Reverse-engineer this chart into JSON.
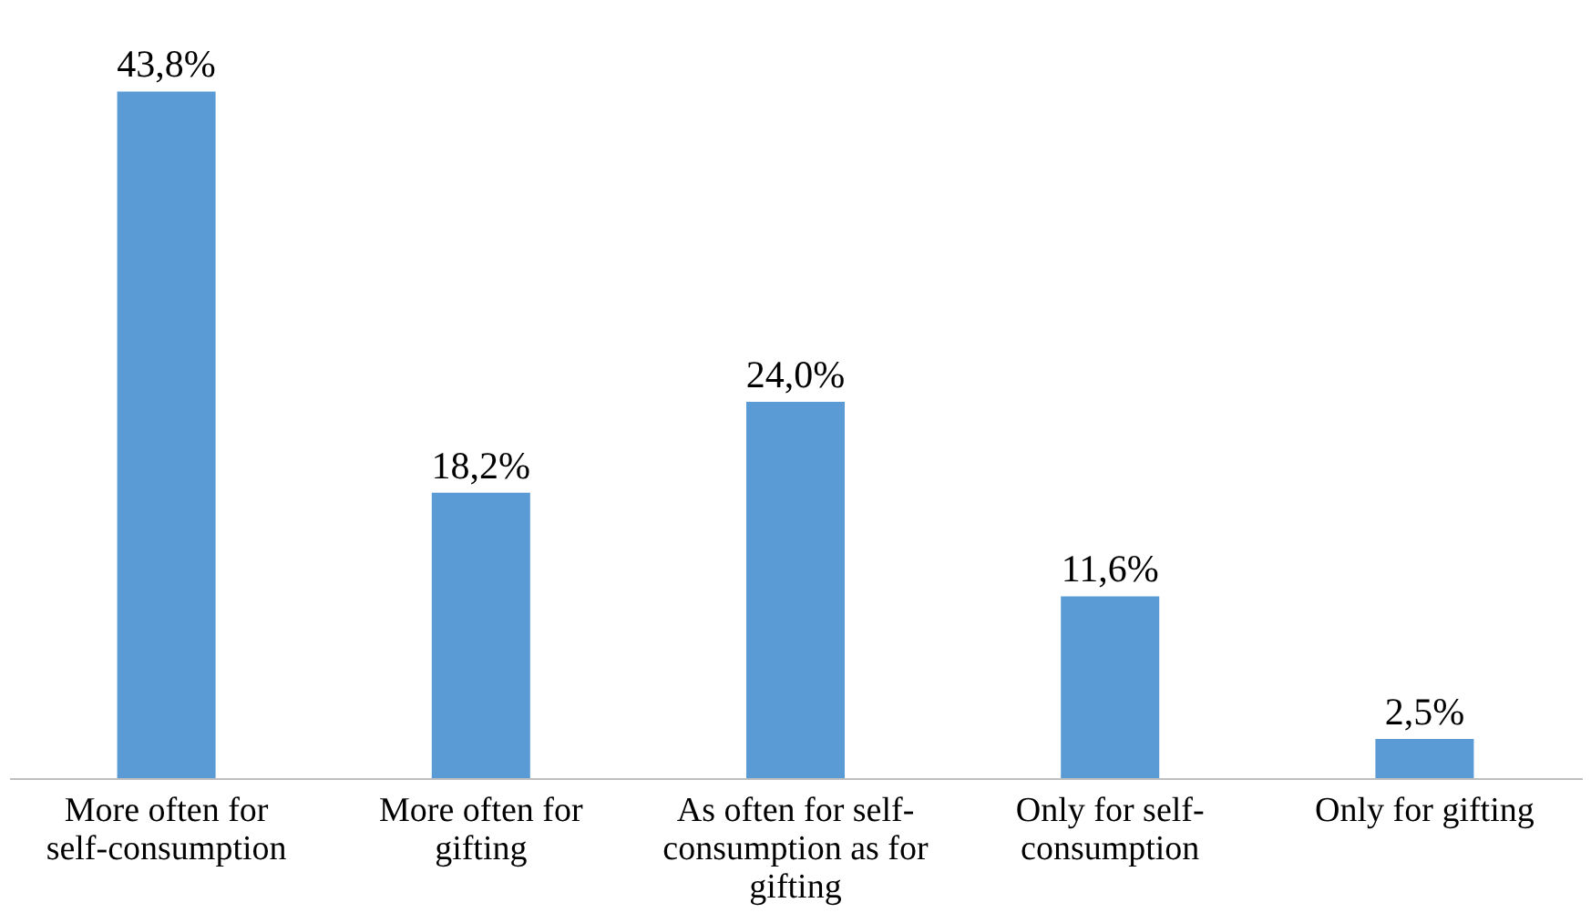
{
  "chart_data": {
    "type": "bar",
    "categories": [
      "More often for self-consumption",
      "More often for gifting",
      "As often for self-consumption as for gifting",
      "Only for self-consumption",
      "Only for gifting"
    ],
    "values": [
      43.8,
      18.2,
      24.0,
      11.6,
      2.5
    ],
    "value_labels": [
      "43,8%",
      "18,2%",
      "24,0%",
      "11,6%",
      "2,5%"
    ],
    "color": "#5b9bd5",
    "grid": false
  }
}
